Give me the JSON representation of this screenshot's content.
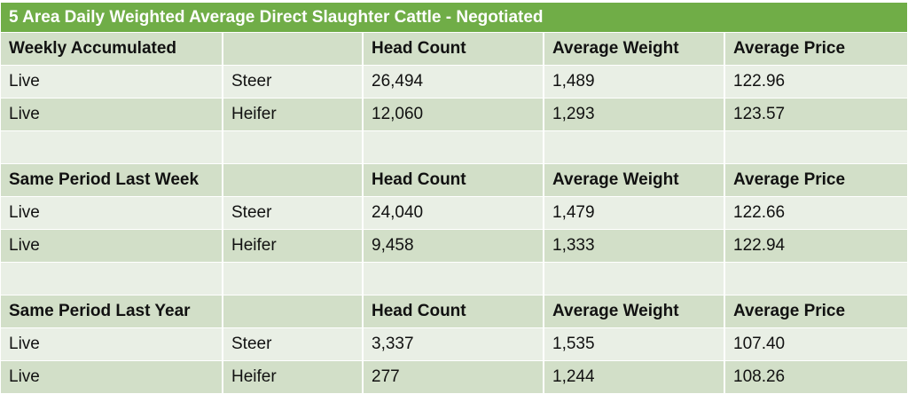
{
  "title": "5 Area Daily Weighted Average Direct Slaughter Cattle - Negotiated",
  "sections": [
    {
      "header": [
        "Weekly Accumulated",
        "",
        "Head Count",
        "Average Weight",
        "Average Price"
      ],
      "rows": [
        [
          "Live",
          "Steer",
          "26,494",
          "1,489",
          "122.96"
        ],
        [
          "Live",
          "Heifer",
          "12,060",
          "1,293",
          "123.57"
        ]
      ]
    },
    {
      "header": [
        "Same Period Last Week",
        "",
        "Head Count",
        "Average Weight",
        "Average Price"
      ],
      "rows": [
        [
          "Live",
          "Steer",
          "24,040",
          "1,479",
          "122.66"
        ],
        [
          "Live",
          "Heifer",
          "9,458",
          "1,333",
          "122.94"
        ]
      ]
    },
    {
      "header": [
        "Same Period Last Year",
        "",
        "Head Count",
        "Average Weight",
        "Average Price"
      ],
      "rows": [
        [
          "Live",
          "Steer",
          "3,337",
          "1,535",
          "107.40"
        ],
        [
          "Live",
          "Heifer",
          "277",
          "1,244",
          "108.26"
        ]
      ]
    }
  ]
}
